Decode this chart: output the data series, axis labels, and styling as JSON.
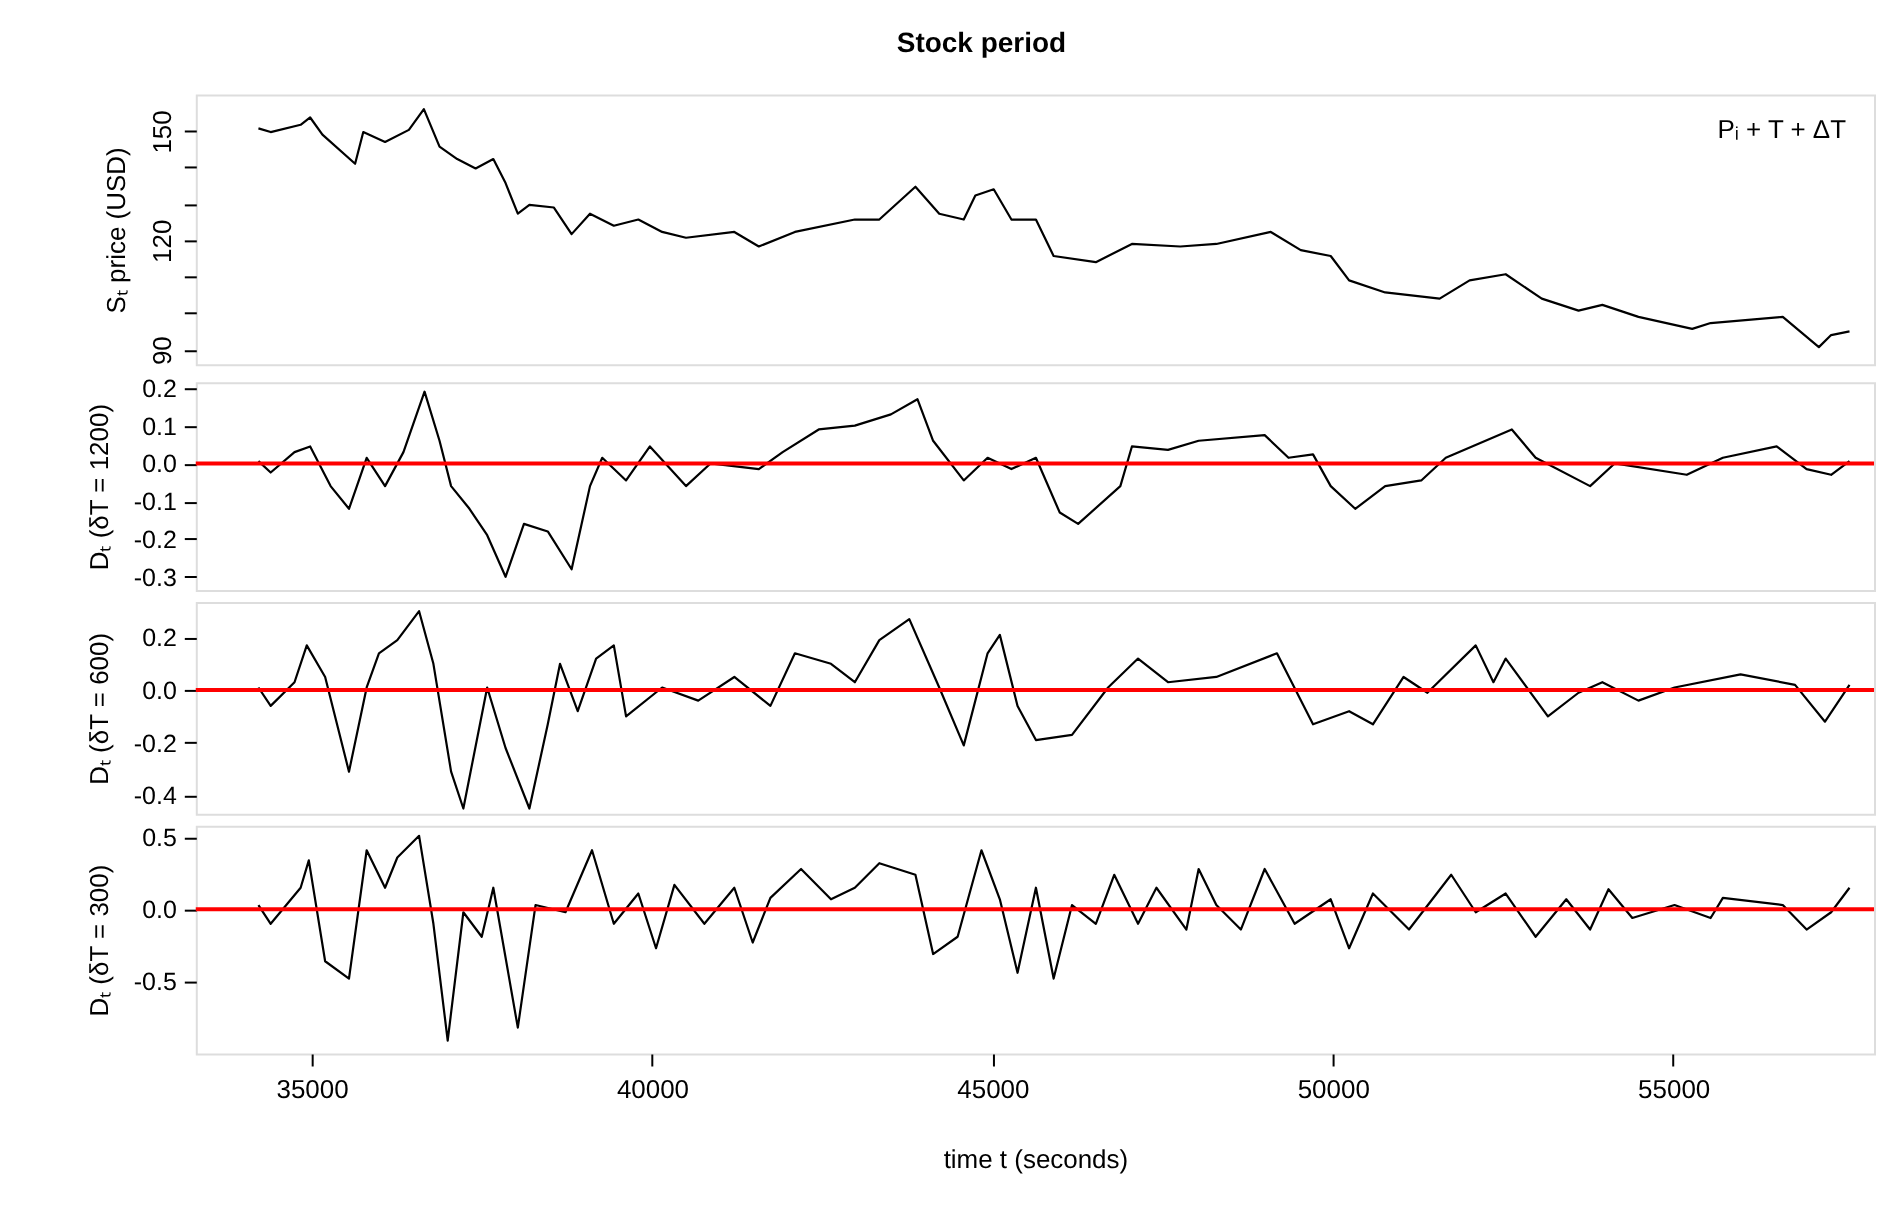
{
  "chart_data": [
    {
      "type": "line",
      "title": "Stock period",
      "ylabel": "Sₜ price (USD)",
      "annotations": [
        "Pᵢ + T + ΔT"
      ],
      "tick_labels": "y",
      "grid": false,
      "xlim": [
        33300,
        57950
      ],
      "ylim": [
        86,
        160
      ],
      "yticks": [
        90,
        {
          "value": 100,
          "label": null
        },
        {
          "value": 110,
          "label": null
        },
        120,
        {
          "value": 130,
          "label": null
        },
        {
          "value": 140,
          "label": null
        },
        150
      ],
      "series": [
        {
          "color": "#000000",
          "x": [
            34220,
            34400,
            34840,
            34980,
            35160,
            35640,
            35760,
            36080,
            36430,
            36650,
            36880,
            37140,
            37410,
            37670,
            37850,
            38030,
            38200,
            38560,
            38820,
            39090,
            39440,
            39800,
            40150,
            40500,
            41210,
            41570,
            42100,
            42980,
            43340,
            43870,
            44220,
            44580,
            44750,
            45020,
            45280,
            45640,
            45900,
            46520,
            47050,
            47760,
            48290,
            49090,
            49530,
            49970,
            50240,
            50770,
            51570,
            52010,
            52540,
            53070,
            53610,
            53960,
            54490,
            55280,
            55550,
            56610,
            57140,
            57320,
            57590
          ],
          "values": [
            150.7,
            149.7,
            151.7,
            153.7,
            149,
            141,
            149.7,
            147,
            150.3,
            156,
            145.7,
            142.3,
            139.7,
            142.3,
            135.7,
            127.3,
            129.7,
            129,
            121.7,
            127.3,
            124,
            125.7,
            122.3,
            120.7,
            122.3,
            118.3,
            122.3,
            125.7,
            125.7,
            134.7,
            127.3,
            125.7,
            132.3,
            134,
            125.7,
            125.7,
            115.7,
            114,
            119,
            118.3,
            119,
            122.3,
            117.3,
            115.7,
            109,
            105.7,
            104,
            109,
            110.7,
            104,
            100.7,
            102.3,
            99,
            95.7,
            97.3,
            99,
            90.7,
            94,
            95
          ]
        }
      ]
    },
    {
      "type": "line",
      "ylabel": "Dₜ (δT = 1200)",
      "tick_labels": "y",
      "grid": false,
      "xlim": [
        33300,
        57950
      ],
      "ylim": [
        -0.335,
        0.215
      ],
      "yticks": [
        -0.3,
        -0.2,
        -0.1,
        {
          "value": 0,
          "label": "0.0"
        },
        0.1,
        0.2
      ],
      "ref_lines": [
        {
          "axis": "y",
          "value": 0,
          "color": "#ff0000"
        }
      ],
      "series": [
        {
          "color": "#000000",
          "x": [
            34220,
            34400,
            34750,
            34980,
            35280,
            35550,
            35810,
            36080,
            36350,
            36660,
            36880,
            37050,
            37320,
            37580,
            37850,
            38120,
            38470,
            38820,
            39090,
            39270,
            39620,
            39970,
            40500,
            40860,
            41570,
            41920,
            42450,
            42980,
            43510,
            43900,
            44130,
            44580,
            44930,
            45280,
            45640,
            45990,
            46260,
            46880,
            47050,
            47580,
            48030,
            49000,
            49350,
            49710,
            49970,
            50330,
            50770,
            51300,
            51660,
            52630,
            52980,
            53780,
            54140,
            55200,
            55730,
            56520,
            56960,
            57320,
            57590
          ],
          "values": [
            0.006,
            -0.024,
            0.03,
            0.045,
            -0.06,
            -0.12,
            0.015,
            -0.06,
            0.03,
            0.19,
            0.06,
            -0.06,
            -0.12,
            -0.19,
            -0.3,
            -0.16,
            -0.18,
            -0.28,
            -0.06,
            0.015,
            -0.045,
            0.045,
            -0.06,
            0,
            -0.015,
            0.03,
            0.09,
            0.1,
            0.13,
            0.17,
            0.06,
            -0.045,
            0.015,
            -0.015,
            0.015,
            -0.13,
            -0.16,
            -0.06,
            0.045,
            0.036,
            0.06,
            0.075,
            0.015,
            0.024,
            -0.06,
            -0.12,
            -0.06,
            -0.045,
            0.015,
            0.09,
            0.015,
            -0.06,
            0,
            -0.03,
            0.015,
            0.045,
            -0.015,
            -0.03,
            0.006
          ]
        }
      ]
    },
    {
      "type": "line",
      "ylabel": "Dₜ (δT = 600)",
      "tick_labels": "y",
      "grid": false,
      "xlim": [
        33300,
        57950
      ],
      "ylim": [
        -0.47,
        0.335
      ],
      "yticks": [
        -0.4,
        -0.2,
        {
          "value": 0,
          "label": "0.0"
        },
        0.2
      ],
      "ref_lines": [
        {
          "axis": "y",
          "value": 0,
          "color": "#ff0000"
        }
      ],
      "series": [
        {
          "color": "#000000",
          "x": [
            34220,
            34400,
            34750,
            34930,
            35200,
            35550,
            35810,
            35990,
            36260,
            36580,
            36790,
            37050,
            37230,
            37580,
            37850,
            38200,
            38470,
            38650,
            38910,
            39180,
            39440,
            39620,
            40150,
            40680,
            41210,
            41740,
            42100,
            42630,
            42980,
            43340,
            43780,
            44220,
            44580,
            44930,
            45110,
            45370,
            45640,
            46170,
            46700,
            47140,
            47580,
            48290,
            49180,
            49710,
            50240,
            50590,
            51040,
            51390,
            52100,
            52360,
            52540,
            53160,
            53610,
            53960,
            54490,
            55020,
            55990,
            56790,
            57230,
            57590
          ],
          "values": [
            0.01,
            -0.06,
            0.03,
            0.17,
            0.05,
            -0.31,
            0.01,
            0.14,
            0.19,
            0.3,
            0.1,
            -0.31,
            -0.45,
            0.01,
            -0.22,
            -0.45,
            -0.13,
            0.1,
            -0.08,
            0.12,
            0.17,
            -0.1,
            0.01,
            -0.04,
            0.05,
            -0.06,
            0.14,
            0.1,
            0.03,
            0.19,
            0.27,
            0.01,
            -0.21,
            0.14,
            0.21,
            -0.06,
            -0.19,
            -0.17,
            0.01,
            0.12,
            0.03,
            0.05,
            0.14,
            -0.13,
            -0.08,
            -0.13,
            0.05,
            -0.01,
            0.17,
            0.03,
            0.12,
            -0.1,
            -0.01,
            0.03,
            -0.04,
            0.01,
            0.06,
            0.02,
            -0.12,
            0.02
          ]
        }
      ]
    },
    {
      "type": "line",
      "ylabel": "Dₜ (δT = 300)",
      "xlabel": "time t (seconds)",
      "grid": false,
      "xlim": [
        33300,
        57950
      ],
      "xticks": [
        35000,
        40000,
        45000,
        50000,
        55000
      ],
      "ylim": [
        -1.0,
        0.58
      ],
      "yticks": [
        -0.5,
        {
          "value": 0,
          "label": "0.0"
        },
        0.5
      ],
      "ref_lines": [
        {
          "axis": "y",
          "value": 0,
          "color": "#ff0000"
        }
      ],
      "series": [
        {
          "color": "#000000",
          "x": [
            34220,
            34400,
            34840,
            34960,
            35200,
            35550,
            35810,
            36080,
            36260,
            36580,
            36790,
            37000,
            37230,
            37500,
            37670,
            38030,
            38290,
            38730,
            39120,
            39440,
            39800,
            40060,
            40330,
            40770,
            41210,
            41480,
            41740,
            42190,
            42630,
            42980,
            43340,
            43870,
            44130,
            44490,
            44840,
            45110,
            45370,
            45640,
            45900,
            46170,
            46520,
            46790,
            47140,
            47410,
            47850,
            48030,
            48290,
            48650,
            49000,
            49440,
            49970,
            50240,
            50590,
            51120,
            51740,
            52100,
            52540,
            52980,
            53430,
            53780,
            54050,
            54400,
            55020,
            55550,
            55730,
            56610,
            56960,
            57320,
            57590
          ],
          "values": [
            0.03,
            -0.1,
            0.15,
            0.34,
            -0.36,
            -0.48,
            0.41,
            0.15,
            0.36,
            0.51,
            -0.1,
            -0.91,
            -0.02,
            -0.19,
            0.15,
            -0.82,
            0.03,
            -0.02,
            0.41,
            -0.1,
            0.11,
            -0.27,
            0.17,
            -0.1,
            0.15,
            -0.23,
            0.08,
            0.28,
            0.07,
            0.15,
            0.32,
            0.24,
            -0.31,
            -0.19,
            0.41,
            0.07,
            -0.44,
            0.15,
            -0.48,
            0.03,
            -0.1,
            0.24,
            -0.1,
            0.15,
            -0.14,
            0.28,
            0.03,
            -0.14,
            0.28,
            -0.1,
            0.07,
            -0.27,
            0.11,
            -0.14,
            0.24,
            -0.02,
            0.11,
            -0.19,
            0.07,
            -0.14,
            0.14,
            -0.06,
            0.03,
            -0.06,
            0.08,
            0.03,
            -0.14,
            -0.02,
            0.15
          ]
        }
      ]
    }
  ]
}
